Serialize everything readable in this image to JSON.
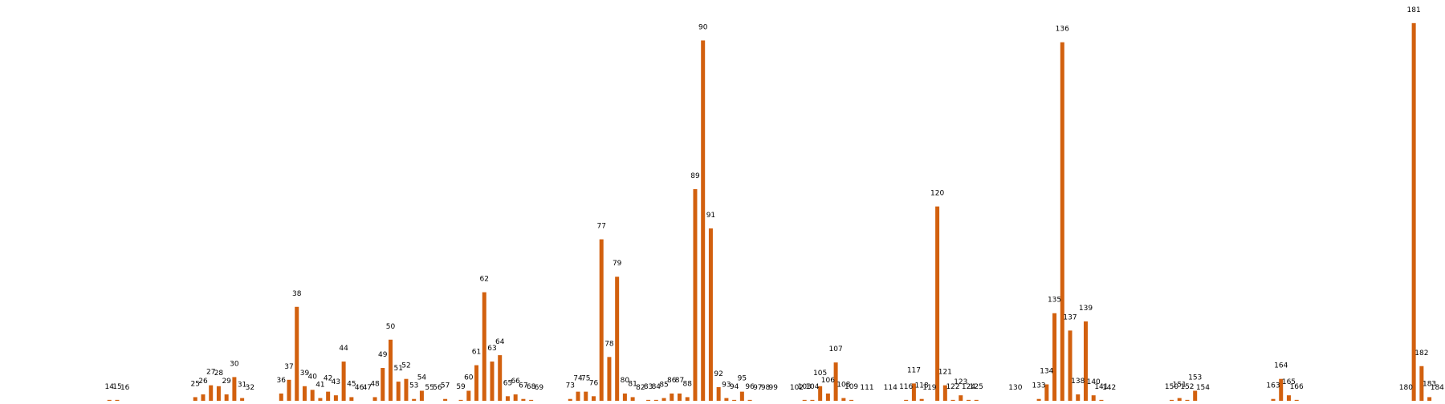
{
  "chart_data": {
    "type": "bar",
    "color": "#d2600e",
    "categories": [
      14,
      15,
      16,
      25,
      26,
      27,
      28,
      29,
      30,
      31,
      32,
      36,
      37,
      38,
      39,
      40,
      41,
      42,
      43,
      44,
      45,
      46,
      47,
      48,
      49,
      50,
      51,
      52,
      53,
      54,
      55,
      56,
      57,
      59,
      60,
      61,
      62,
      63,
      64,
      65,
      66,
      67,
      68,
      69,
      73,
      74,
      75,
      76,
      77,
      78,
      79,
      80,
      81,
      82,
      83,
      84,
      85,
      86,
      87,
      88,
      89,
      90,
      91,
      92,
      93,
      94,
      95,
      96,
      97,
      98,
      99,
      102,
      103,
      104,
      105,
      106,
      107,
      108,
      109,
      111,
      114,
      116,
      117,
      118,
      119,
      120,
      121,
      122,
      123,
      124,
      125,
      130,
      133,
      134,
      135,
      136,
      137,
      138,
      139,
      140,
      141,
      142,
      150,
      151,
      152,
      153,
      154,
      163,
      164,
      165,
      166,
      180,
      181,
      182,
      183,
      184
    ],
    "values": [
      1,
      1,
      0,
      4,
      7,
      17,
      16,
      7,
      26,
      3,
      0,
      8,
      23,
      103,
      16,
      12,
      3,
      10,
      6,
      43,
      4,
      0,
      0,
      4,
      36,
      67,
      21,
      24,
      2,
      11,
      0,
      0,
      2,
      1,
      11,
      39,
      119,
      43,
      50,
      5,
      7,
      2,
      1,
      0,
      2,
      10,
      10,
      5,
      177,
      48,
      136,
      8,
      4,
      0,
      1,
      1,
      3,
      8,
      8,
      4,
      232,
      395,
      189,
      15,
      3,
      1,
      10,
      1,
      0,
      0,
      0,
      0,
      1,
      1,
      16,
      8,
      42,
      3,
      1,
      0,
      0,
      1,
      19,
      2,
      0,
      213,
      17,
      1,
      6,
      1,
      1,
      0,
      2,
      18,
      96,
      393,
      77,
      7,
      87,
      6,
      1,
      0,
      1,
      3,
      1,
      11,
      0,
      2,
      24,
      6,
      1,
      0,
      414,
      38,
      4,
      0
    ],
    "labels": [
      "14",
      "15",
      "16",
      "25",
      "26",
      "27",
      "28",
      "29",
      "30",
      "31",
      "32",
      "36",
      "37",
      "38",
      "39",
      "40",
      "41",
      "42",
      "43",
      "44",
      "45",
      "46",
      "47",
      "48",
      "49",
      "50",
      "51",
      "52",
      "53",
      "54",
      "55",
      "56",
      "57",
      "59",
      "60",
      "61",
      "62",
      "63",
      "64",
      "65",
      "66",
      "67",
      "68",
      "69",
      "73",
      "74",
      "75",
      "76",
      "77",
      "78",
      "79",
      "80",
      "81",
      "82",
      "83",
      "84",
      "85",
      "86",
      "87",
      "88",
      "89",
      "90",
      "91",
      "92",
      "93",
      "94",
      "95",
      "96",
      "97",
      "98",
      "99",
      "102",
      "103",
      "104",
      "105",
      "106",
      "107",
      "108",
      "109",
      "111",
      "114",
      "116",
      "117",
      "118",
      "119",
      "120",
      "121",
      "122",
      "123",
      "124",
      "125",
      "130",
      "133",
      "134",
      "135",
      "136",
      "137",
      "138",
      "139",
      "140",
      "141",
      "142",
      "150",
      "151",
      "152",
      "153",
      "154",
      "163",
      "164",
      "165",
      "166",
      "180",
      "181",
      "182",
      "183",
      "184"
    ],
    "xlim": [
      0,
      185
    ],
    "ylim": [
      0,
      420
    ],
    "title": "",
    "xlabel": "",
    "ylabel": "",
    "grid": false,
    "legend": "none"
  }
}
